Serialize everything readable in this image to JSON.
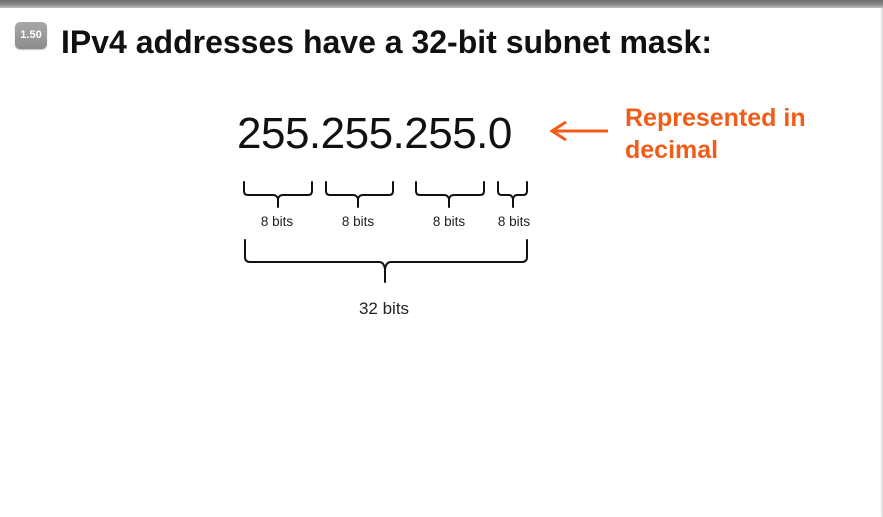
{
  "slide": {
    "section_badge": "1.50",
    "title": "IPv4 addresses have a 32-bit subnet mask:",
    "mask_value": "255.255.255.0",
    "annotation": "Represented in decimal",
    "octet_labels": [
      "8 bits",
      "8 bits",
      "8 bits",
      "8 bits"
    ],
    "total_label": "32 bits"
  },
  "colors": {
    "annotation": "#f25c19",
    "text": "#111111",
    "badge": "#9a9a9a"
  },
  "icons": {
    "arrow": "left-arrow-icon",
    "brace": "curly-brace-down"
  }
}
